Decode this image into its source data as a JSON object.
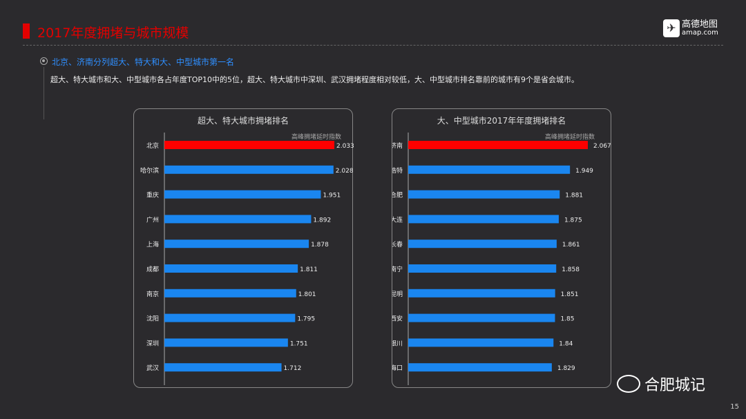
{
  "header": {
    "title": "2017年度拥堵与城市规模",
    "logo_text": "高德地图",
    "logo_sub": "amap.com"
  },
  "subtitle": "北京、济南分列超大、特大和大、中型城市第一名",
  "description": "超大、特大城市和大、中型城市各占年度TOP10中的5位，超大、特大城市中深圳、武汉拥堵程度相对较低，大、中型城市排名靠前的城市有9个是省会城市。",
  "watermark": "合肥城记",
  "page_number": "15",
  "colors": {
    "highlight": "#ff0000",
    "bar": "#1a86f0",
    "title": "#e30000",
    "subtitle": "#2f8fff"
  },
  "chart_data": [
    {
      "type": "bar",
      "orientation": "horizontal",
      "title": "超大、特大城市拥堵排名",
      "legend": "高峰拥堵延时指数",
      "categories": [
        "北京",
        "哈尔滨",
        "重庆",
        "广州",
        "上海",
        "成都",
        "南京",
        "沈阳",
        "深圳",
        "武汉"
      ],
      "values": [
        2.033,
        2.028,
        1.951,
        1.892,
        1.878,
        1.811,
        1.801,
        1.795,
        1.751,
        1.712
      ],
      "xlim": [
        1.0,
        2.1
      ],
      "highlight_index": 0,
      "grid": false
    },
    {
      "type": "bar",
      "orientation": "horizontal",
      "title": "大、中型城市2017年年度拥堵排名",
      "legend": "高峰拥堵延时指数",
      "categories": [
        "济南",
        "呼和浩特",
        "合肥",
        "大连",
        "长春",
        "南宁",
        "昆明",
        "西安",
        "银川",
        "海口"
      ],
      "values": [
        2.067,
        1.949,
        1.881,
        1.875,
        1.861,
        1.858,
        1.851,
        1.85,
        1.84,
        1.829
      ],
      "xlim": [
        0.88,
        2.2
      ],
      "highlight_index": 0,
      "grid": false
    }
  ]
}
